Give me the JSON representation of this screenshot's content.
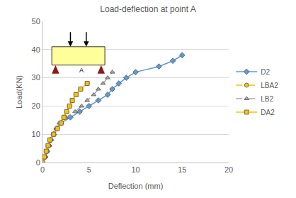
{
  "chart_data": {
    "type": "line",
    "title": "Load-deflection at point A",
    "x_label": "Deflection (mm)",
    "y_label": "Load(KN)",
    "annotations": [
      "A"
    ],
    "xlim": [
      0,
      20
    ],
    "xticks": [
      0,
      5,
      10,
      15,
      20
    ],
    "ylim": [
      0,
      50
    ],
    "yticks": [
      0,
      10,
      20,
      30,
      40,
      50
    ],
    "grid": true,
    "legend": "right",
    "series": [
      {
        "name": "D2",
        "color": "#5b9bd5",
        "marker": "diamond",
        "line_style": "solid",
        "x": [
          0,
          0.3,
          0.5,
          0.7,
          0.9,
          1.2,
          1.5,
          2,
          3,
          4,
          5,
          6,
          7,
          7.5,
          8.2,
          9,
          10,
          12.5,
          14,
          15
        ],
        "values": [
          0,
          2,
          4,
          6,
          8,
          10,
          12,
          14,
          16,
          18,
          20,
          22,
          24,
          26,
          28,
          30,
          32,
          34,
          36,
          38
        ]
      },
      {
        "name": "LBA2",
        "color": "#ffc000",
        "marker": "circle",
        "line_style": "dash",
        "x": [
          0,
          0.2,
          0.4,
          0.6,
          0.8,
          1.2,
          1.6,
          2,
          2.3,
          2.6,
          2.9,
          3.2,
          3.6,
          4.1,
          4.8
        ],
        "values": [
          0,
          2,
          4,
          6,
          8,
          10,
          12,
          14,
          16,
          18,
          20,
          22,
          24,
          26,
          28
        ]
      },
      {
        "name": "LB2",
        "color": "#a5a5a5",
        "marker": "triangle-up",
        "line_style": "dash",
        "x": [
          0,
          0.3,
          0.5,
          0.7,
          0.9,
          1.2,
          1.5,
          1.8,
          2.5,
          3.5,
          4.2,
          4.8,
          5.5,
          6,
          6.5,
          7,
          7.5
        ],
        "values": [
          0,
          2,
          4,
          6,
          8,
          10,
          12,
          14,
          16,
          18,
          20,
          22,
          24,
          26,
          28,
          30,
          32
        ]
      },
      {
        "name": "DA2",
        "color": "#ffc000",
        "marker": "square",
        "line_style": "solid",
        "x": [
          0,
          0.2,
          0.4,
          0.6,
          0.8,
          1.2,
          1.6,
          2,
          2.3,
          2.6,
          2.9,
          3.2,
          3.6,
          4.1,
          4.8
        ],
        "values": [
          0,
          2,
          4,
          6,
          8,
          10,
          12,
          14,
          16,
          18,
          20,
          22,
          24,
          26,
          28
        ]
      }
    ]
  }
}
